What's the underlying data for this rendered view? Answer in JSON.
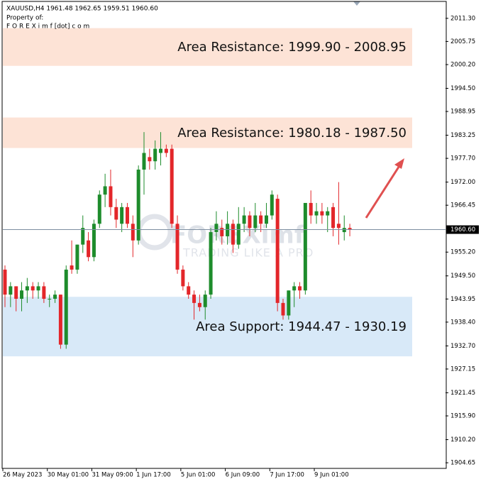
{
  "chart_data": {
    "type": "candlestick",
    "symbol_info": "XAUUSD,H4  1961.48 1962.65 1959.51 1960.60",
    "owner_label": "Property of:",
    "owner": "F O R E X i m f [dot] c o m",
    "watermark": "FOREXimf",
    "watermark_tagline": "TRADING LIKE A PRO",
    "bull_color": "#1e8c2c",
    "bear_color": "#e3262a",
    "categories": [
      "26 May 2023",
      null,
      null,
      null,
      null,
      null,
      null,
      null,
      "30 May 01:00",
      null,
      null,
      null,
      null,
      null,
      null,
      null,
      "31 May 09:00",
      null,
      null,
      null,
      null,
      null,
      null,
      null,
      "1 Jun 17:00",
      null,
      null,
      null,
      null,
      null,
      null,
      null,
      "5 Jun 01:00",
      null,
      null,
      null,
      null,
      null,
      null,
      null,
      "6 Jun 09:00",
      null,
      null,
      null,
      null,
      null,
      null,
      null,
      "7 Jun 17:00",
      null,
      null,
      null,
      null,
      null,
      null,
      null,
      "9 Jun 01:00",
      null,
      null,
      null,
      null,
      null,
      null
    ],
    "open": [
      1951,
      1945,
      1947,
      1944,
      1946,
      1947,
      1946,
      1947,
      1944,
      1944,
      1945,
      1933,
      1952,
      1951,
      1957,
      1958,
      1954,
      1962,
      1969,
      1971,
      1966,
      1962,
      1966,
      1962,
      1958,
      1975,
      1978,
      1977,
      1979,
      1980,
      1980,
      1962,
      1951,
      1947,
      1945,
      1943,
      1942,
      1945,
      1960,
      1961,
      1959,
      1962,
      1957,
      1962,
      1964,
      1961,
      1964,
      1962,
      1964,
      1968,
      1943,
      1940,
      1946,
      1947,
      1946,
      1967,
      1964,
      1965,
      1964,
      1966,
      1962,
      1960,
      1961
    ],
    "high": [
      1952,
      1948,
      1947,
      1948,
      1949,
      1948,
      1948,
      1948,
      1945,
      1946,
      1945,
      1952,
      1958,
      1957,
      1964,
      1960,
      1963,
      1970,
      1974,
      1975,
      1968,
      1967,
      1967,
      1964,
      1976,
      1984,
      1980,
      1982,
      1984,
      1981,
      1981,
      1964,
      1952,
      1948,
      1946,
      1945,
      1946,
      1961,
      1965,
      1963,
      1965,
      1963,
      1966,
      1966,
      1965,
      1967,
      1965,
      1967,
      1970,
      1969,
      1944,
      1946,
      1948,
      1948,
      1967,
      1970,
      1967,
      1967,
      1966,
      1967,
      1972,
      1964,
      1962
    ],
    "low": [
      1942,
      1942,
      1941,
      1941,
      1943,
      1944,
      1944,
      1943,
      1942,
      1943,
      1932,
      1932,
      1950,
      1950,
      1955,
      1953,
      1953,
      1961,
      1966,
      1964,
      1961,
      1960,
      1961,
      1954,
      1957,
      1969,
      1975,
      1975,
      1976,
      1978,
      1961,
      1950,
      1946,
      1944,
      1939,
      1941,
      1939,
      1944,
      1958,
      1957,
      1957,
      1955,
      1956,
      1960,
      1959,
      1960,
      1960,
      1961,
      1963,
      1941,
      1939,
      1939,
      1942,
      1944,
      1945,
      1962,
      1962,
      1962,
      1960,
      1959,
      1957,
      1958,
      1959
    ],
    "close": [
      1945,
      1947,
      1944,
      1946,
      1947,
      1946,
      1947,
      1944,
      1944,
      1945,
      1933,
      1951,
      1951,
      1957,
      1961,
      1954,
      1962,
      1969,
      1971,
      1966,
      1963,
      1966,
      1962,
      1958,
      1975,
      1979,
      1977,
      1980,
      1980,
      1979,
      1962,
      1951,
      1947,
      1945,
      1943,
      1942,
      1945,
      1960,
      1962,
      1959,
      1962,
      1957,
      1962,
      1964,
      1961,
      1964,
      1962,
      1964,
      1969,
      1943,
      1940,
      1946,
      1947,
      1946,
      1967,
      1964,
      1965,
      1964,
      1965,
      1961,
      1961,
      1961,
      1960.6
    ],
    "current_price": {
      "value": 1960.6,
      "label": "1960.60"
    },
    "zones": [
      {
        "label": "Area Resistance: 1999.90 - 2008.95",
        "low": 1999.9,
        "high": 2008.95,
        "color": "#fde3d6"
      },
      {
        "label": "Area Resistance: 1980.18 - 1987.50",
        "low": 1980.18,
        "high": 1987.5,
        "color": "#fde3d6"
      },
      {
        "label": "Area Support: 1944.47 - 1930.19",
        "low": 1930.19,
        "high": 1944.47,
        "color": "#d8e9f8"
      }
    ],
    "ylim": [
      1903.3,
      2015.7
    ],
    "yticks": [
      {
        "value": 2011.3,
        "label": "2011.30"
      },
      2005.75,
      {
        "value": 2000.2,
        "label": "2000.20"
      },
      {
        "value": 1994.5,
        "label": "1994.50"
      },
      1988.95,
      1983.25,
      {
        "value": 1977.7,
        "label": "1977.70"
      },
      {
        "value": 1972,
        "label": "1972.00"
      },
      1966.45,
      {
        "value": 1955.2,
        "label": "1955.20"
      },
      {
        "value": 1949.5,
        "label": "1949.50"
      },
      1943.95,
      {
        "value": 1938.4,
        "label": "1938.40"
      },
      {
        "value": 1932.7,
        "label": "1932.70"
      },
      1927.15,
      1921.45,
      {
        "value": 1915.9,
        "label": "1915.90"
      },
      {
        "value": 1910.2,
        "label": "1910.20"
      },
      1904.65
    ]
  }
}
